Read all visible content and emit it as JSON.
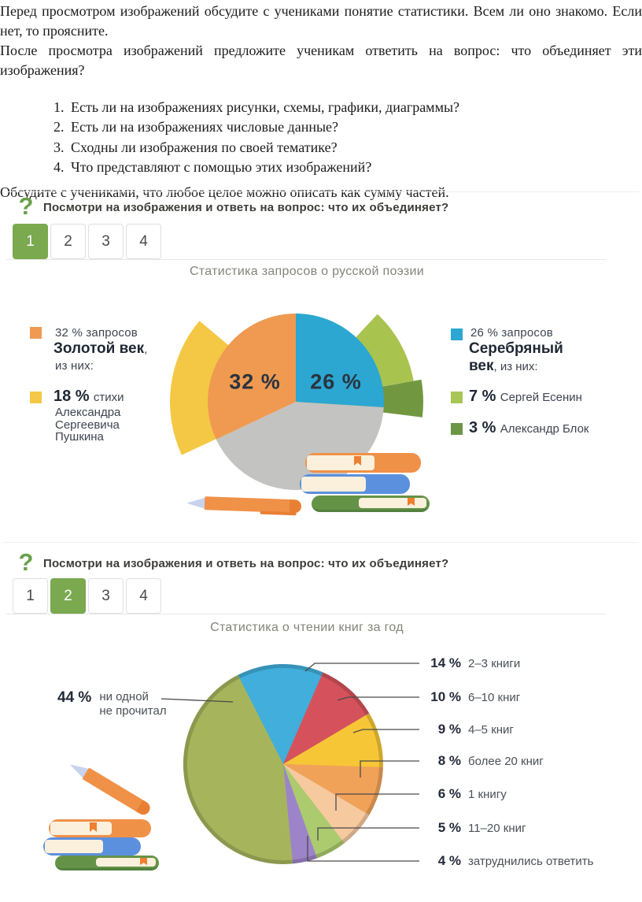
{
  "document": {
    "paragraph1": "Перед просмотром изображений обсудите с учениками понятие статистики. Всем ли оно знакомо. Если нет, то проясните.",
    "paragraph2": "После просмотра изображений предложите ученикам ответить на вопрос: что объединяет эти изображения?",
    "questions": [
      "Есть ли на изображениях рисунки, схемы, графики, диаграммы?",
      "Есть ли на изображениях числовые данные?",
      "Сходны ли изображения по своей тематике?",
      "Что представляют с помощью этих изображений?"
    ],
    "paragraph3": "Обсудите с учениками, что любое целое можно описать как сумму частей."
  },
  "widgets": [
    {
      "icon": "question-mark",
      "prompt": "Посмотри на изображения и ответь на вопрос: что их объединяет?",
      "tabs": [
        "1",
        "2",
        "3",
        "4"
      ],
      "active_tab": "1",
      "chart_title": "Статистика запросов о русской поэзии"
    },
    {
      "icon": "question-mark",
      "prompt": "Посмотри на изображения и ответь на вопрос: что их объединяет?",
      "tabs": [
        "1",
        "2",
        "3",
        "4"
      ],
      "active_tab": "2",
      "chart_title": "Статистика о чтении книг за год"
    }
  ],
  "chart1_legend": {
    "left": {
      "main": {
        "color": "#ef9a50",
        "line1": "32 % запросов",
        "name": "Золотой век",
        "name_suffix": ",",
        "line3": "из них:"
      },
      "sub": {
        "color": "#f3c843",
        "pct": "18 %",
        "pct_suffix": "стихи",
        "lines": [
          "Александра",
          "Сергеевича",
          "Пушкина"
        ]
      }
    },
    "right": {
      "main": {
        "color": "#2ba7d1",
        "line1": "26 % запросов",
        "name1": "Серебряный",
        "name2": "век",
        "name2_suffix": ", из них:"
      },
      "sub1": {
        "color": "#a8c653",
        "pct": "7 %",
        "text": "Сергей Есенин"
      },
      "sub2": {
        "color": "#6b9647",
        "pct": "3 %",
        "text": "Александр Блок"
      }
    }
  },
  "chart2_labels": {
    "left": {
      "pct": "44 %",
      "lines": [
        "ни одной",
        "не прочитал"
      ]
    },
    "right": [
      {
        "pct": "14 %",
        "text": "2–3 книги"
      },
      {
        "pct": "10 %",
        "text": "6–10 книг"
      },
      {
        "pct": "9 %",
        "text": "4–5 книг"
      },
      {
        "pct": "8 %",
        "text": "более 20 книг"
      },
      {
        "pct": "6 %",
        "text": "1 книгу"
      },
      {
        "pct": "5 %",
        "text": "11–20 книг"
      },
      {
        "pct": "4 %",
        "text": "затруднились ответить"
      }
    ]
  },
  "chart_data": [
    {
      "type": "pie",
      "title": "Статистика запросов о русской поэзии",
      "start_angle": 90,
      "direction": "clockwise",
      "slices": [
        {
          "label": "Серебряный век, запросов",
          "value": 26,
          "color": "#2ba7d1",
          "display": "26 %"
        },
        {
          "label": "",
          "value": 42,
          "color": "#c3c3c2",
          "display": ""
        },
        {
          "label": "Золотой век, запросов",
          "value": 32,
          "color": "#ef9a50",
          "display": "32 %"
        }
      ],
      "sub_shares": [
        {
          "label": "стихи Александра Сергеевича Пушкина",
          "value": 18,
          "color": "#f4c844"
        },
        {
          "label": "Сергей Есенин",
          "value": 7,
          "color": "#a9c34f"
        },
        {
          "label": "Александр Блок",
          "value": 3,
          "color": "#719840"
        }
      ]
    },
    {
      "type": "pie",
      "title": "Статистика о чтении книг за год",
      "start_angle": 117,
      "direction": "clockwise",
      "slices": [
        {
          "label": "2–3 книги",
          "value": 14,
          "color": "#41aedb"
        },
        {
          "label": "6–10 книг",
          "value": 10,
          "color": "#d5525c"
        },
        {
          "label": "4–5 книг",
          "value": 9,
          "color": "#f7c636"
        },
        {
          "label": "более 20 книг",
          "value": 8,
          "color": "#f0a259"
        },
        {
          "label": "1 книгу",
          "value": 6,
          "color": "#f6c99f"
        },
        {
          "label": "11–20 книг",
          "value": 5,
          "color": "#abcb6e"
        },
        {
          "label": "затруднились ответить",
          "value": 4,
          "color": "#9d84c9"
        },
        {
          "label": "ни одной не прочитал",
          "value": 44,
          "color": "#a6b55c"
        }
      ]
    }
  ],
  "colors": {
    "accent_green": "#7aa94f",
    "icon_green": "#69a04b",
    "title_gray": "#84837b",
    "leader_line": "#4a4a4a"
  }
}
